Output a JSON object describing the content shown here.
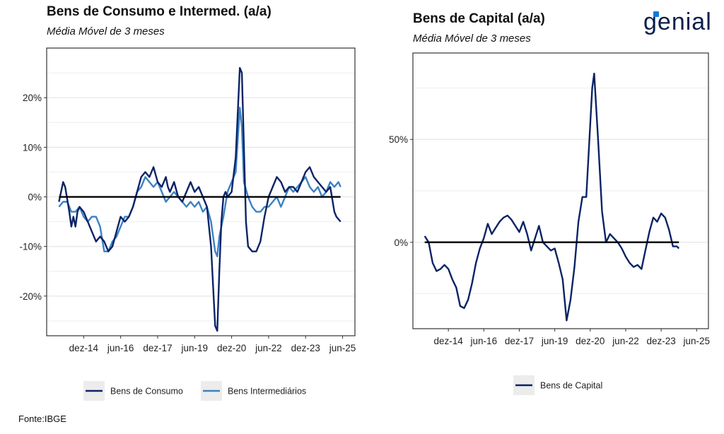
{
  "brand": {
    "name": "genial",
    "accent": "#0e7be0",
    "dark": "#0b1f4d"
  },
  "source": "Fonte:IBGE",
  "colors": {
    "consumo": "#0b2366",
    "intermediarios": "#3b82c4",
    "capital": "#0b2366",
    "zero_line": "#000000"
  },
  "chart_data": [
    {
      "type": "line",
      "title": "Bens de Consumo e Intermed. (a/a)",
      "subtitle": "Média Móvel de 3 meses",
      "xlabel": "",
      "ylabel": "",
      "ylim": [
        -28,
        30
      ],
      "xlim": [
        "2013-06",
        "2025-12"
      ],
      "x_ticks": [
        "dez-14",
        "jun-16",
        "dez-17",
        "jun-19",
        "dez-20",
        "jun-22",
        "dez-23",
        "jun-25"
      ],
      "y_ticks": [
        20,
        10,
        0,
        -10,
        -20
      ],
      "y_tick_labels": [
        "20%",
        "10%",
        "0%",
        "-10%",
        "-20%"
      ],
      "grid": true,
      "legend": "bottom",
      "series": [
        {
          "name": "Bens de Consumo",
          "color": "#0b2366",
          "points": [
            [
              "2013-12",
              -1
            ],
            [
              "2014-02",
              3
            ],
            [
              "2014-03",
              2
            ],
            [
              "2014-05",
              -3
            ],
            [
              "2014-06",
              -6
            ],
            [
              "2014-07",
              -4
            ],
            [
              "2014-08",
              -6
            ],
            [
              "2014-09",
              -3
            ],
            [
              "2014-10",
              -2
            ],
            [
              "2014-12",
              -3
            ],
            [
              "2015-02",
              -5
            ],
            [
              "2015-04",
              -7
            ],
            [
              "2015-06",
              -9
            ],
            [
              "2015-08",
              -8
            ],
            [
              "2015-10",
              -9
            ],
            [
              "2015-12",
              -11
            ],
            [
              "2016-02",
              -10
            ],
            [
              "2016-04",
              -7
            ],
            [
              "2016-06",
              -4
            ],
            [
              "2016-08",
              -5
            ],
            [
              "2016-10",
              -4
            ],
            [
              "2016-12",
              -2
            ],
            [
              "2017-02",
              1
            ],
            [
              "2017-04",
              4
            ],
            [
              "2017-06",
              5
            ],
            [
              "2017-08",
              4
            ],
            [
              "2017-10",
              6
            ],
            [
              "2017-12",
              3
            ],
            [
              "2018-02",
              2
            ],
            [
              "2018-04",
              4
            ],
            [
              "2018-05",
              2
            ],
            [
              "2018-06",
              1
            ],
            [
              "2018-08",
              3
            ],
            [
              "2018-10",
              0
            ],
            [
              "2018-12",
              -1
            ],
            [
              "2019-02",
              1
            ],
            [
              "2019-04",
              3
            ],
            [
              "2019-06",
              1
            ],
            [
              "2019-08",
              2
            ],
            [
              "2019-10",
              0
            ],
            [
              "2019-12",
              -2
            ],
            [
              "2020-02",
              -10
            ],
            [
              "2020-04",
              -26
            ],
            [
              "2020-05",
              -27
            ],
            [
              "2020-06",
              -15
            ],
            [
              "2020-07",
              -5
            ],
            [
              "2020-08",
              0
            ],
            [
              "2020-09",
              1
            ],
            [
              "2020-10",
              0
            ],
            [
              "2020-12",
              1
            ],
            [
              "2021-02",
              8
            ],
            [
              "2021-04",
              26
            ],
            [
              "2021-05",
              25
            ],
            [
              "2021-06",
              10
            ],
            [
              "2021-07",
              -5
            ],
            [
              "2021-08",
              -10
            ],
            [
              "2021-10",
              -11
            ],
            [
              "2021-12",
              -11
            ],
            [
              "2022-02",
              -9
            ],
            [
              "2022-04",
              -4
            ],
            [
              "2022-06",
              0
            ],
            [
              "2022-08",
              2
            ],
            [
              "2022-10",
              4
            ],
            [
              "2022-12",
              3
            ],
            [
              "2023-02",
              1
            ],
            [
              "2023-04",
              2
            ],
            [
              "2023-06",
              2
            ],
            [
              "2023-08",
              1
            ],
            [
              "2023-10",
              3
            ],
            [
              "2023-12",
              5
            ],
            [
              "2024-02",
              6
            ],
            [
              "2024-04",
              4
            ],
            [
              "2024-06",
              3
            ],
            [
              "2024-08",
              2
            ],
            [
              "2024-10",
              1
            ],
            [
              "2024-12",
              2
            ],
            [
              "2025-02",
              -3
            ],
            [
              "2025-03",
              -4
            ],
            [
              "2025-05",
              -5
            ]
          ]
        },
        {
          "name": "Bens Intermediários",
          "color": "#3b82c4",
          "points": [
            [
              "2013-12",
              -2
            ],
            [
              "2014-02",
              -1
            ],
            [
              "2014-04",
              -1
            ],
            [
              "2014-06",
              -3
            ],
            [
              "2014-08",
              -3
            ],
            [
              "2014-10",
              -2
            ],
            [
              "2014-12",
              -4
            ],
            [
              "2015-02",
              -5
            ],
            [
              "2015-04",
              -4
            ],
            [
              "2015-06",
              -4
            ],
            [
              "2015-08",
              -6
            ],
            [
              "2015-10",
              -11
            ],
            [
              "2015-12",
              -11
            ],
            [
              "2016-02",
              -9
            ],
            [
              "2016-04",
              -8
            ],
            [
              "2016-06",
              -6
            ],
            [
              "2016-08",
              -4
            ],
            [
              "2016-10",
              -4
            ],
            [
              "2016-12",
              -2
            ],
            [
              "2017-02",
              1
            ],
            [
              "2017-04",
              2
            ],
            [
              "2017-06",
              4
            ],
            [
              "2017-08",
              3
            ],
            [
              "2017-10",
              2
            ],
            [
              "2017-12",
              3
            ],
            [
              "2018-02",
              1
            ],
            [
              "2018-04",
              -1
            ],
            [
              "2018-06",
              0
            ],
            [
              "2018-08",
              1
            ],
            [
              "2018-10",
              0
            ],
            [
              "2018-12",
              -1
            ],
            [
              "2019-02",
              -2
            ],
            [
              "2019-04",
              -1
            ],
            [
              "2019-06",
              -2
            ],
            [
              "2019-08",
              -1
            ],
            [
              "2019-10",
              -3
            ],
            [
              "2019-12",
              -2
            ],
            [
              "2020-02",
              -5
            ],
            [
              "2020-04",
              -11
            ],
            [
              "2020-05",
              -12
            ],
            [
              "2020-06",
              -8
            ],
            [
              "2020-08",
              -4
            ],
            [
              "2020-10",
              1
            ],
            [
              "2020-12",
              3
            ],
            [
              "2021-02",
              5
            ],
            [
              "2021-04",
              18
            ],
            [
              "2021-05",
              14
            ],
            [
              "2021-06",
              3
            ],
            [
              "2021-08",
              0
            ],
            [
              "2021-10",
              -2
            ],
            [
              "2021-12",
              -3
            ],
            [
              "2022-02",
              -3
            ],
            [
              "2022-04",
              -2
            ],
            [
              "2022-06",
              -2
            ],
            [
              "2022-08",
              -1
            ],
            [
              "2022-10",
              0
            ],
            [
              "2022-12",
              -2
            ],
            [
              "2023-02",
              0
            ],
            [
              "2023-04",
              2
            ],
            [
              "2023-06",
              1
            ],
            [
              "2023-08",
              2
            ],
            [
              "2023-10",
              3
            ],
            [
              "2023-12",
              4
            ],
            [
              "2024-02",
              2
            ],
            [
              "2024-04",
              1
            ],
            [
              "2024-06",
              2
            ],
            [
              "2024-08",
              0
            ],
            [
              "2024-10",
              1
            ],
            [
              "2024-12",
              3
            ],
            [
              "2025-02",
              2
            ],
            [
              "2025-04",
              3
            ],
            [
              "2025-05",
              2
            ]
          ]
        }
      ],
      "zero_line": 0
    },
    {
      "type": "line",
      "title": "Bens de Capital (a/a)",
      "subtitle": "Média Móvel de 3 meses",
      "xlabel": "",
      "ylabel": "",
      "ylim": [
        -42,
        92
      ],
      "xlim": [
        "2013-06",
        "2025-12"
      ],
      "x_ticks": [
        "dez-14",
        "jun-16",
        "dez-17",
        "jun-19",
        "dez-20",
        "jun-22",
        "dez-23",
        "jun-25"
      ],
      "y_ticks": [
        50,
        0
      ],
      "y_tick_labels": [
        "50%",
        "0%"
      ],
      "grid": true,
      "legend": "bottom",
      "series": [
        {
          "name": "Bens de Capital",
          "color": "#0b2366",
          "points": [
            [
              "2013-12",
              3
            ],
            [
              "2014-02",
              0
            ],
            [
              "2014-04",
              -10
            ],
            [
              "2014-06",
              -14
            ],
            [
              "2014-08",
              -13
            ],
            [
              "2014-10",
              -11
            ],
            [
              "2014-12",
              -13
            ],
            [
              "2015-02",
              -18
            ],
            [
              "2015-04",
              -22
            ],
            [
              "2015-06",
              -31
            ],
            [
              "2015-08",
              -32
            ],
            [
              "2015-10",
              -28
            ],
            [
              "2015-12",
              -20
            ],
            [
              "2016-02",
              -10
            ],
            [
              "2016-04",
              -3
            ],
            [
              "2016-06",
              2
            ],
            [
              "2016-08",
              9
            ],
            [
              "2016-10",
              4
            ],
            [
              "2016-12",
              7
            ],
            [
              "2017-02",
              10
            ],
            [
              "2017-04",
              12
            ],
            [
              "2017-06",
              13
            ],
            [
              "2017-08",
              11
            ],
            [
              "2017-10",
              8
            ],
            [
              "2017-12",
              5
            ],
            [
              "2018-02",
              10
            ],
            [
              "2018-04",
              4
            ],
            [
              "2018-06",
              -4
            ],
            [
              "2018-08",
              2
            ],
            [
              "2018-10",
              8
            ],
            [
              "2018-12",
              0
            ],
            [
              "2019-02",
              -2
            ],
            [
              "2019-04",
              -4
            ],
            [
              "2019-06",
              -3
            ],
            [
              "2019-08",
              -10
            ],
            [
              "2019-10",
              -18
            ],
            [
              "2019-12",
              -38
            ],
            [
              "2020-02",
              -28
            ],
            [
              "2020-04",
              -12
            ],
            [
              "2020-06",
              10
            ],
            [
              "2020-08",
              22
            ],
            [
              "2020-10",
              22
            ],
            [
              "2021-01",
              75
            ],
            [
              "2021-02",
              82
            ],
            [
              "2021-04",
              50
            ],
            [
              "2021-06",
              15
            ],
            [
              "2021-08",
              0
            ],
            [
              "2021-10",
              4
            ],
            [
              "2021-12",
              2
            ],
            [
              "2022-02",
              0
            ],
            [
              "2022-04",
              -3
            ],
            [
              "2022-06",
              -7
            ],
            [
              "2022-08",
              -10
            ],
            [
              "2022-10",
              -12
            ],
            [
              "2022-12",
              -11
            ],
            [
              "2023-02",
              -13
            ],
            [
              "2023-04",
              -4
            ],
            [
              "2023-06",
              5
            ],
            [
              "2023-08",
              12
            ],
            [
              "2023-10",
              10
            ],
            [
              "2023-12",
              14
            ],
            [
              "2024-02",
              12
            ],
            [
              "2024-04",
              6
            ],
            [
              "2024-06",
              -2
            ],
            [
              "2024-08",
              -2
            ],
            [
              "2024-09",
              -3
            ]
          ]
        }
      ],
      "zero_line": 0
    }
  ]
}
